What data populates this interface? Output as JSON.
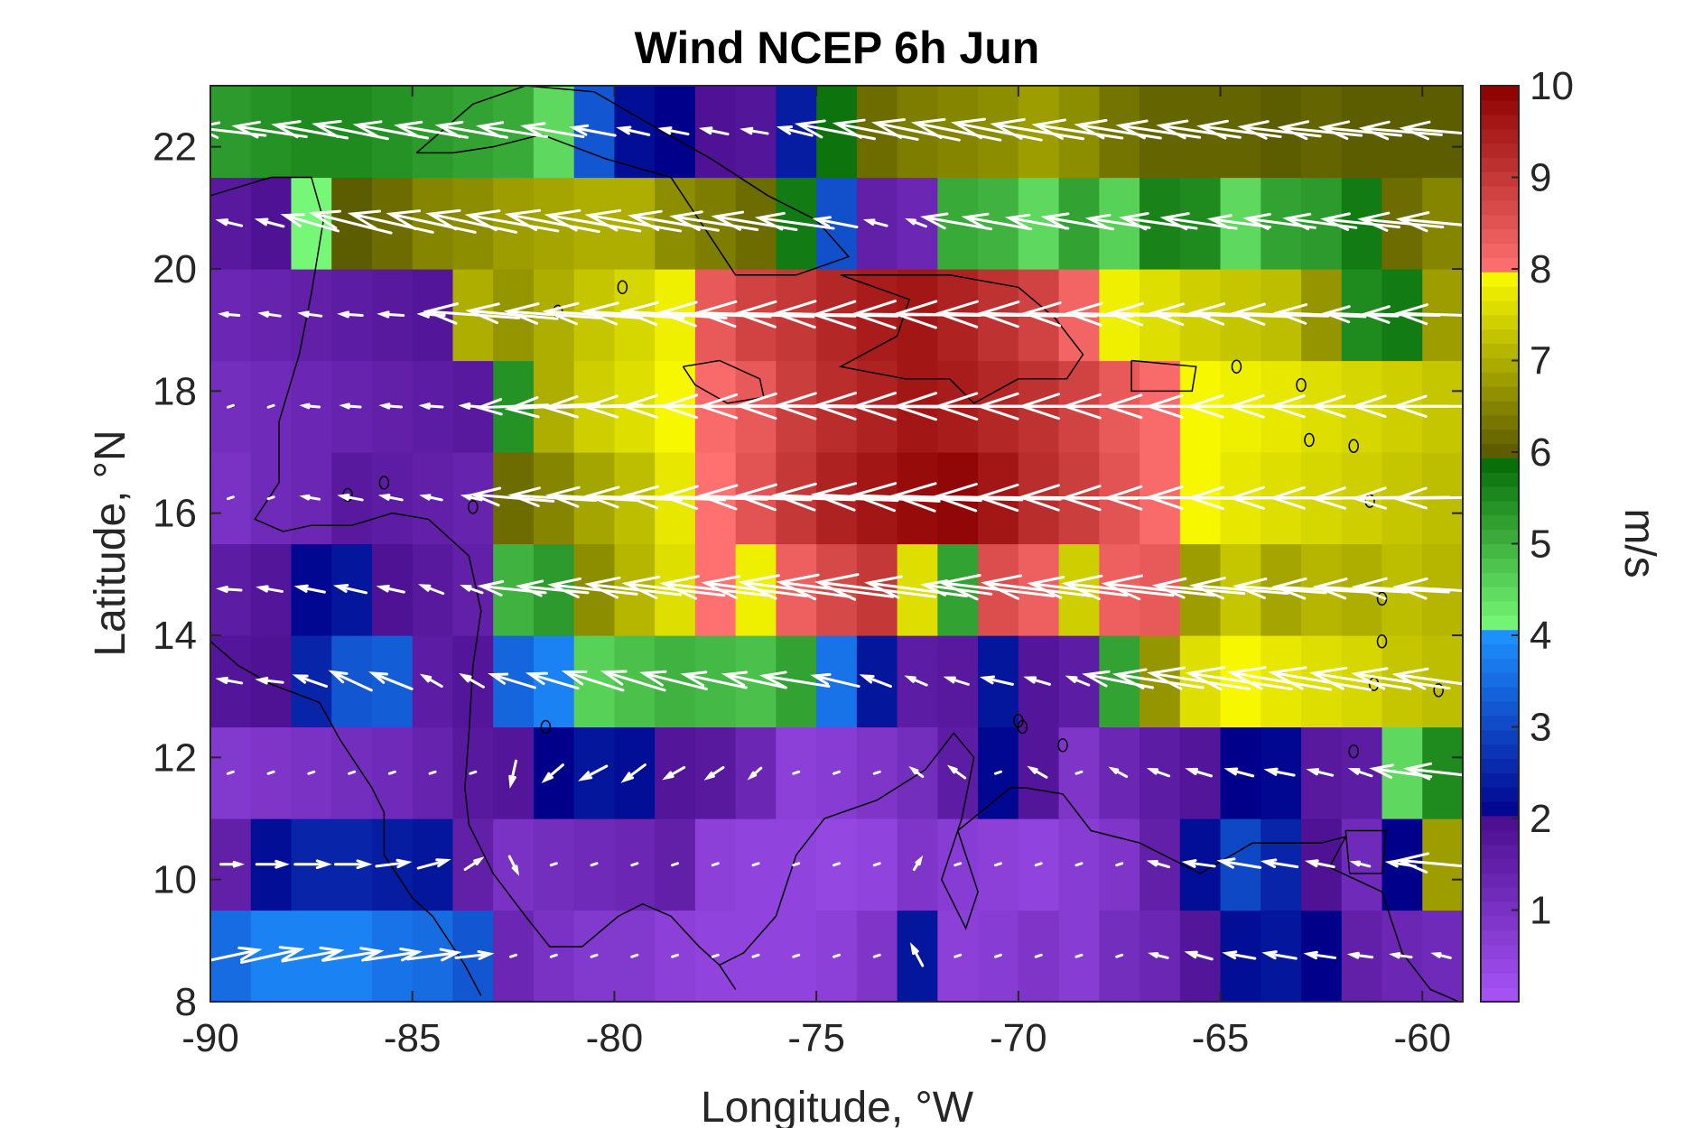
{
  "chart_data": {
    "type": "heatmap",
    "title": "Wind NCEP 6h Jun",
    "xlabel": "Longitude, °W",
    "ylabel": "Latitude, °N",
    "xlim": [
      -90,
      -59
    ],
    "ylim": [
      8,
      23
    ],
    "xticks": [
      -90,
      -85,
      -80,
      -75,
      -70,
      -65,
      -60
    ],
    "xtick_labels": [
      "-90",
      "-85",
      "-80",
      "-75",
      "-70",
      "-65",
      "-60"
    ],
    "yticks": [
      8,
      10,
      12,
      14,
      16,
      18,
      20,
      22
    ],
    "ytick_labels": [
      "8",
      "10",
      "12",
      "14",
      "16",
      "18",
      "20",
      "22"
    ],
    "colorbar": {
      "label": "m/s",
      "range": [
        0,
        10
      ],
      "ticks": [
        1,
        2,
        3,
        4,
        5,
        6,
        7,
        8,
        9,
        10
      ],
      "tick_labels": [
        "1",
        "2",
        "3",
        "4",
        "5",
        "6",
        "7",
        "8",
        "9",
        "10"
      ],
      "segments": [
        {
          "from": 0,
          "to": 2,
          "color_low": "#a855f7",
          "color_high": "#4a0e8f"
        },
        {
          "from": 2,
          "to": 4,
          "color_low": "#00008b",
          "color_high": "#1e90ff"
        },
        {
          "from": 4,
          "to": 6,
          "color_low": "#7dff7d",
          "color_high": "#006400"
        },
        {
          "from": 6,
          "to": 8,
          "color_low": "#5c5c00",
          "color_high": "#ffff00"
        },
        {
          "from": 8,
          "to": 10,
          "color_low": "#ff7070",
          "color_high": "#8b0000"
        }
      ]
    },
    "grid": {
      "lon_start": -90,
      "lon_step": 1,
      "n_lon": 31,
      "lat_start": 8,
      "lat_step": 1.5,
      "n_lat": 10,
      "speed_ms": [
        [
          3.5,
          3.8,
          3.8,
          3.8,
          3.6,
          3.5,
          3.2,
          1.3,
          1.0,
          0.8,
          0.8,
          0.6,
          0.5,
          0.5,
          0.5,
          0.6,
          0.9,
          2.3,
          0.6,
          0.7,
          0.9,
          0.7,
          1.1,
          1.3,
          1.8,
          2.2,
          2.3,
          2.0,
          1.5,
          1.3,
          1.2
        ],
        [
          1.5,
          2.2,
          2.5,
          2.5,
          2.4,
          2.3,
          1.5,
          1.0,
          1.1,
          1.2,
          1.3,
          1.5,
          0.6,
          0.5,
          0.5,
          0.4,
          0.5,
          0.9,
          0.7,
          0.6,
          0.5,
          0.7,
          0.9,
          1.5,
          2.2,
          3.0,
          2.5,
          1.9,
          1.2,
          2.0,
          6.8
        ],
        [
          0.8,
          0.9,
          1.0,
          1.1,
          1.2,
          1.4,
          1.7,
          1.8,
          2.0,
          2.3,
          2.2,
          1.8,
          1.7,
          1.3,
          0.6,
          0.7,
          0.9,
          1.1,
          1.6,
          2.1,
          1.8,
          0.9,
          1.3,
          1.6,
          1.8,
          2.0,
          2.1,
          1.7,
          1.6,
          4.5,
          5.5
        ],
        [
          1.8,
          1.9,
          2.5,
          3.2,
          3.3,
          1.6,
          1.8,
          3.4,
          3.8,
          4.6,
          4.8,
          5.0,
          4.9,
          4.8,
          5.2,
          3.6,
          2.3,
          1.6,
          1.7,
          2.3,
          1.8,
          1.6,
          5.2,
          6.7,
          7.6,
          7.9,
          7.7,
          7.6,
          7.5,
          7.3,
          7.2
        ],
        [
          1.6,
          1.8,
          2.1,
          2.3,
          1.9,
          1.7,
          1.5,
          5.0,
          5.3,
          6.6,
          7.1,
          7.6,
          8.0,
          7.8,
          8.3,
          8.7,
          9.0,
          7.6,
          5.2,
          8.6,
          8.3,
          7.4,
          8.3,
          8.4,
          6.8,
          7.3,
          6.9,
          7.1,
          7.0,
          7.2,
          7.1
        ],
        [
          1.0,
          1.2,
          1.3,
          1.7,
          1.6,
          1.5,
          1.4,
          6.2,
          6.5,
          6.9,
          7.2,
          7.7,
          8.0,
          8.5,
          9.0,
          9.4,
          9.6,
          9.8,
          9.9,
          9.6,
          9.2,
          8.9,
          8.5,
          8.1,
          7.9,
          7.7,
          7.6,
          7.5,
          7.4,
          7.3,
          7.2
        ],
        [
          1.1,
          1.2,
          1.3,
          1.4,
          1.5,
          1.6,
          1.7,
          5.4,
          7.0,
          7.4,
          7.6,
          7.9,
          8.1,
          8.4,
          8.9,
          9.2,
          9.4,
          9.6,
          9.5,
          9.3,
          9.1,
          8.8,
          8.4,
          8.1,
          7.9,
          7.8,
          7.7,
          7.6,
          7.5,
          7.4,
          7.3
        ],
        [
          1.3,
          1.4,
          1.5,
          1.6,
          1.7,
          1.8,
          7.0,
          6.7,
          7.0,
          7.3,
          7.5,
          7.8,
          8.4,
          8.8,
          9.0,
          9.3,
          9.5,
          9.6,
          9.4,
          9.1,
          8.8,
          8.2,
          7.8,
          7.6,
          7.4,
          7.3,
          7.2,
          6.7,
          5.5,
          5.7,
          6.8
        ],
        [
          1.7,
          1.9,
          4.1,
          6.0,
          6.2,
          6.5,
          6.6,
          6.8,
          6.9,
          7.0,
          7.0,
          6.6,
          6.4,
          6.2,
          5.7,
          3.1,
          1.5,
          1.3,
          5.1,
          5.0,
          4.5,
          5.2,
          4.6,
          5.6,
          5.5,
          4.5,
          5.2,
          5.3,
          5.7,
          6.2,
          6.5
        ],
        [
          5.3,
          5.4,
          5.5,
          5.5,
          5.4,
          5.3,
          5.2,
          5.1,
          4.5,
          3.2,
          2.2,
          2.0,
          1.9,
          1.8,
          2.4,
          5.8,
          6.2,
          6.4,
          6.5,
          6.6,
          6.8,
          6.6,
          6.3,
          6.1,
          6.1,
          6.1,
          6.0,
          6.1,
          6.0,
          6.0,
          6.0
        ]
      ]
    },
    "vector_field": {
      "description_units": "wind vectors, m/s",
      "u_ms": [
        [
          4.2,
          4.5,
          4.4,
          4.3,
          4.0,
          3.8,
          2.6,
          0.0,
          0.0,
          0.0,
          0.0,
          0.0,
          0.0,
          0.0,
          0.0,
          0.0,
          0.0,
          -0.8,
          0.0,
          0.0,
          0.0,
          0.0,
          0.0,
          -1.2,
          -1.8,
          -2.2,
          -2.3,
          -2.1,
          -1.6,
          -1.4,
          -1.2
        ],
        [
          1.5,
          2.2,
          2.5,
          2.5,
          2.4,
          2.2,
          1.2,
          0.6,
          0.0,
          0.0,
          0.0,
          0.0,
          0.0,
          0.0,
          0.0,
          0.0,
          0.0,
          0.5,
          0.0,
          0.0,
          0.0,
          0.0,
          0.0,
          -1.4,
          -2.2,
          -3.0,
          -2.5,
          -1.9,
          -1.2,
          -2.0,
          -6.6
        ],
        [
          0.0,
          0.0,
          0.0,
          0.0,
          0.0,
          0.0,
          0.0,
          -0.4,
          -1.4,
          -1.9,
          -1.6,
          -1.4,
          -1.2,
          -0.8,
          0.0,
          0.0,
          0.0,
          -0.8,
          -1.1,
          0.0,
          -1.2,
          0.0,
          -1.1,
          -1.4,
          -1.7,
          -1.9,
          -2.0,
          -1.7,
          -1.5,
          -4.4,
          -5.4
        ],
        [
          -1.7,
          -1.8,
          -2.3,
          -3.0,
          -3.0,
          -1.4,
          -1.6,
          -3.3,
          -3.7,
          -4.4,
          -4.6,
          -4.8,
          -4.7,
          -4.6,
          -5.0,
          -3.4,
          -2.1,
          -1.4,
          -1.6,
          -2.2,
          -1.7,
          -1.5,
          -5.1,
          -6.6,
          -7.5,
          -7.8,
          -7.6,
          -7.5,
          -7.4,
          -7.2,
          -7.1
        ],
        [
          -1.6,
          -1.7,
          -2.0,
          -2.2,
          -1.8,
          -1.6,
          -1.4,
          -4.9,
          -5.2,
          -6.5,
          -7.0,
          -7.5,
          -7.9,
          -7.7,
          -8.2,
          -8.6,
          -8.9,
          -7.5,
          -5.1,
          -8.5,
          -8.2,
          -7.3,
          -8.2,
          -8.3,
          -6.7,
          -7.2,
          -6.8,
          -7.0,
          -6.9,
          -7.1,
          -7.0
        ],
        [
          0.0,
          0.0,
          -1.2,
          -1.6,
          -1.5,
          -1.4,
          -1.3,
          -6.1,
          -6.4,
          -6.8,
          -7.1,
          -7.6,
          -7.9,
          -8.4,
          -8.9,
          -9.3,
          -9.5,
          -9.7,
          -9.8,
          -9.5,
          -9.1,
          -8.8,
          -8.4,
          -8.0,
          -7.8,
          -7.6,
          -7.5,
          -7.4,
          -7.3,
          -7.2,
          -7.1
        ],
        [
          0.0,
          0.0,
          -1.2,
          -1.3,
          -1.4,
          -1.5,
          -1.6,
          -5.3,
          -6.9,
          -7.3,
          -7.5,
          -7.8,
          -8.0,
          -8.3,
          -8.8,
          -9.1,
          -9.3,
          -9.5,
          -9.4,
          -9.2,
          -9.0,
          -8.7,
          -8.3,
          -8.0,
          -7.8,
          -7.7,
          -7.6,
          -7.5,
          -7.4,
          -7.3,
          -7.2
        ],
        [
          -1.3,
          -1.4,
          -1.5,
          -1.6,
          -1.7,
          -1.8,
          -7.0,
          -6.7,
          -7.0,
          -7.3,
          -7.5,
          -7.8,
          -8.4,
          -8.8,
          -9.0,
          -9.3,
          -9.5,
          -9.6,
          -9.4,
          -9.1,
          -8.8,
          -8.2,
          -7.8,
          -7.6,
          -7.4,
          -7.3,
          -7.2,
          -6.7,
          -5.5,
          -5.7,
          -6.8
        ],
        [
          -1.7,
          -1.9,
          -4.1,
          -6.0,
          -6.2,
          -6.5,
          -6.6,
          -6.8,
          -6.9,
          -7.0,
          -7.0,
          -6.6,
          -6.4,
          -6.2,
          -5.7,
          -3.1,
          -1.5,
          -1.3,
          -5.1,
          -5.0,
          -4.5,
          -5.2,
          -4.6,
          -5.6,
          -5.5,
          -4.5,
          -5.2,
          -5.3,
          -5.7,
          -6.2,
          -6.5
        ],
        [
          -5.3,
          -5.4,
          -5.5,
          -5.5,
          -5.4,
          -5.3,
          -5.2,
          -5.1,
          -4.5,
          -3.2,
          -2.2,
          -2.0,
          -1.9,
          -1.8,
          -2.4,
          -5.8,
          -6.2,
          -6.4,
          -6.5,
          -6.6,
          -6.8,
          -6.6,
          -6.3,
          -6.1,
          -6.1,
          -6.1,
          -6.0,
          -6.1,
          -6.0,
          -6.0,
          -6.0
        ]
      ],
      "v_ms": [
        [
          0.9,
          1.0,
          0.8,
          0.7,
          0.6,
          0.5,
          0.3,
          0.0,
          0.0,
          0.0,
          0.0,
          0.0,
          0.0,
          0.0,
          0.0,
          0.0,
          0.0,
          1.5,
          0.0,
          0.0,
          0.0,
          0.0,
          0.0,
          0.3,
          0.5,
          0.4,
          0.4,
          0.3,
          0.2,
          0.2,
          0.3
        ],
        [
          0.0,
          0.0,
          0.0,
          0.0,
          0.3,
          0.6,
          0.8,
          -1.2,
          0.0,
          0.0,
          0.0,
          0.0,
          0.0,
          0.0,
          0.0,
          0.0,
          0.0,
          0.8,
          0.0,
          0.0,
          0.0,
          0.0,
          0.0,
          0.4,
          0.3,
          0.5,
          0.4,
          0.4,
          0.3,
          0.3,
          0.6
        ],
        [
          0.0,
          0.0,
          0.0,
          0.0,
          0.0,
          0.0,
          0.0,
          -1.8,
          -1.2,
          -1.0,
          -1.2,
          -0.8,
          -0.8,
          -0.7,
          0.0,
          0.0,
          0.0,
          0.6,
          0.8,
          0.0,
          0.7,
          0.0,
          0.6,
          0.5,
          0.5,
          0.5,
          0.4,
          0.4,
          0.5,
          0.6,
          0.6
        ],
        [
          0.3,
          0.2,
          0.8,
          1.4,
          1.2,
          0.8,
          0.9,
          1.0,
          1.1,
          1.4,
          1.4,
          1.2,
          1.0,
          1.0,
          0.8,
          0.8,
          0.8,
          0.6,
          0.5,
          0.5,
          0.5,
          0.6,
          1.0,
          1.0,
          1.2,
          1.2,
          1.3,
          1.3,
          1.2,
          1.1,
          1.0
        ],
        [
          0.1,
          0.3,
          0.4,
          0.5,
          0.4,
          0.6,
          0.5,
          0.5,
          0.5,
          0.7,
          0.8,
          0.9,
          0.9,
          1.0,
          1.1,
          1.1,
          1.1,
          1.0,
          0.7,
          1.0,
          1.0,
          0.9,
          0.9,
          0.9,
          0.6,
          0.6,
          0.5,
          0.4,
          0.4,
          0.4,
          0.4
        ],
        [
          0.0,
          0.0,
          0.2,
          0.3,
          0.3,
          0.3,
          0.3,
          0.5,
          0.4,
          0.4,
          0.3,
          0.3,
          0.2,
          0.3,
          0.3,
          0.4,
          0.5,
          0.4,
          0.3,
          0.2,
          0.1,
          0.1,
          0.0,
          0.0,
          0.1,
          0.0,
          0.0,
          0.0,
          -0.1,
          -0.1,
          -0.1
        ],
        [
          0.0,
          0.0,
          0.1,
          0.1,
          0.1,
          0.1,
          0.1,
          -0.2,
          -0.4,
          -0.2,
          -0.1,
          0.0,
          0.0,
          0.0,
          0.1,
          0.1,
          0.1,
          0.0,
          0.0,
          0.0,
          0.0,
          0.0,
          0.0,
          0.0,
          0.0,
          0.0,
          0.0,
          0.0,
          0.0,
          0.0,
          0.0
        ],
        [
          0.1,
          0.2,
          0.2,
          0.1,
          0.1,
          0.1,
          0.5,
          0.6,
          0.5,
          0.5,
          0.5,
          0.5,
          0.3,
          0.3,
          0.2,
          0.2,
          0.0,
          0.1,
          0.1,
          0.2,
          0.2,
          0.2,
          0.2,
          0.2,
          0.2,
          0.3,
          0.2,
          0.3,
          0.2,
          0.1,
          0.2
        ],
        [
          0.4,
          0.5,
          1.2,
          1.5,
          1.4,
          1.4,
          1.4,
          1.2,
          1.3,
          1.2,
          1.2,
          1.1,
          1.0,
          1.0,
          0.8,
          0.6,
          0.4,
          0.5,
          0.9,
          0.9,
          0.8,
          0.9,
          0.7,
          0.8,
          0.8,
          0.6,
          0.7,
          0.7,
          0.6,
          0.6,
          0.6
        ],
        [
          0.6,
          0.8,
          1.0,
          1.1,
          1.0,
          0.9,
          0.9,
          0.8,
          0.8,
          0.6,
          0.5,
          0.4,
          0.4,
          0.3,
          0.6,
          1.1,
          1.2,
          1.3,
          1.3,
          1.3,
          1.1,
          1.0,
          1.0,
          0.9,
          0.9,
          0.8,
          0.7,
          0.6,
          0.6,
          0.5,
          0.5
        ]
      ]
    }
  }
}
